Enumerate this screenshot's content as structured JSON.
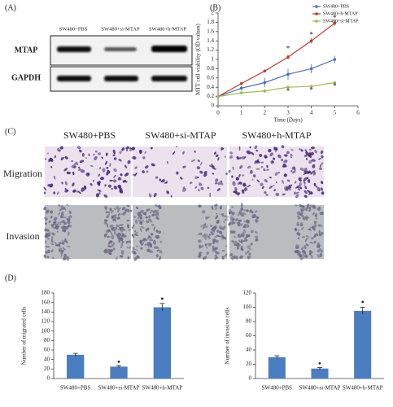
{
  "figure": {
    "panel_labels": [
      "(A)",
      "(B)",
      "(C)",
      "(D)"
    ],
    "blot": {
      "lanes": [
        "SW480+PBS",
        "SW480+si-MTAP",
        "SW480+h-MTAP"
      ],
      "rows": [
        "MTAP",
        "GAPDH"
      ]
    },
    "microscopy": {
      "columns": [
        "SW480+PBS",
        "SW480+si-MTAP",
        "SW480+h-MTAP"
      ],
      "rows": [
        "Migration",
        "Invasion"
      ]
    }
  },
  "chart_data": [
    {
      "type": "line",
      "xlabel": "Time (Days)",
      "ylabel": "MTT cell viability (OD values)",
      "xlim": [
        0,
        6
      ],
      "xticks": [
        0,
        1,
        2,
        3,
        4,
        5,
        6
      ],
      "ylim": [
        0,
        2
      ],
      "yticks": [
        0,
        0.2,
        0.4,
        0.6,
        0.8,
        1,
        1.2,
        1.4,
        1.6,
        1.8,
        2
      ],
      "legend": "upper right",
      "x": [
        0,
        1,
        2,
        3,
        4,
        5
      ],
      "series": [
        {
          "name": "SW480+PBS",
          "color": "#4a6fb5",
          "values": [
            0.2,
            0.38,
            0.5,
            0.68,
            0.8,
            1.0
          ],
          "errors": [
            0,
            0.05,
            0.1,
            0.12,
            0.1,
            0.08
          ]
        },
        {
          "name": "SW480+h-MTAP",
          "color": "#c0392b",
          "values": [
            0.2,
            0.48,
            0.75,
            1.05,
            1.4,
            1.78
          ],
          "errors": [
            0,
            0.02,
            0.03,
            0.05,
            0.06,
            0.05
          ]
        },
        {
          "name": "SW480+si-MTAP",
          "color": "#9bbb59",
          "values": [
            0.2,
            0.28,
            0.32,
            0.4,
            0.42,
            0.5
          ],
          "errors": [
            0,
            0.03,
            0.04,
            0.04,
            0.03,
            0.03
          ]
        }
      ],
      "annotations": [
        {
          "label": "*",
          "x": 3,
          "y": 1.22
        },
        {
          "label": "*",
          "x": 4,
          "y": 1.52
        },
        {
          "label": "*",
          "x": 5,
          "y": 1.88
        },
        {
          "label": "*",
          "x": 3,
          "y": 0.3
        },
        {
          "label": "*",
          "x": 4,
          "y": 0.33
        },
        {
          "label": "*",
          "x": 5,
          "y": 0.41
        }
      ]
    },
    {
      "type": "bar",
      "ylabel": "Number of migrated cells",
      "color": "#4a7ec0",
      "categories": [
        "SW480+PBS",
        "SW480+si-MTAP",
        "SW480+h-MTAP"
      ],
      "values": [
        50,
        25,
        150
      ],
      "errors": [
        3,
        2,
        8
      ],
      "ylim": [
        0,
        180
      ],
      "yticks": [
        0,
        20,
        40,
        60,
        80,
        100,
        120,
        140,
        160,
        180
      ],
      "annotations": [
        {
          "label": "•",
          "x": 1,
          "y": 33
        },
        {
          "label": "•",
          "x": 2,
          "y": 166
        }
      ]
    },
    {
      "type": "bar",
      "ylabel": "Number of invasive cells",
      "color": "#4a7ec0",
      "categories": [
        "SW480+PBS",
        "SW480+si-MTAP",
        "SW480+h-MTAP"
      ],
      "values": [
        30,
        14,
        95
      ],
      "errors": [
        2,
        1.5,
        5
      ],
      "ylim": [
        0,
        120
      ],
      "yticks": [
        0,
        20,
        40,
        60,
        80,
        100,
        120
      ],
      "annotations": [
        {
          "label": "•",
          "x": 1,
          "y": 20
        },
        {
          "label": "•",
          "x": 2,
          "y": 106
        }
      ]
    }
  ]
}
